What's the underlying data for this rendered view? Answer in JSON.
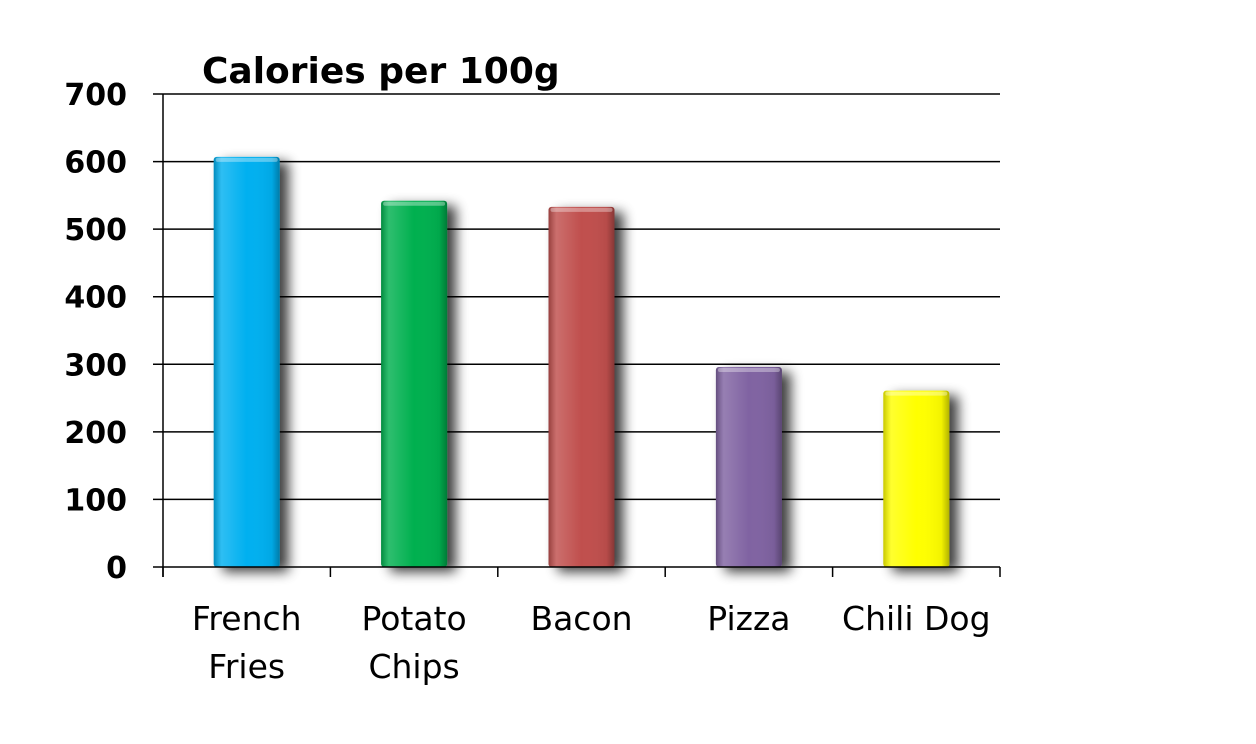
{
  "chart_data": {
    "type": "bar",
    "title": "Calories per 100g",
    "xlabel": "",
    "ylabel": "",
    "ylim": [
      0,
      700
    ],
    "yticks": [
      0,
      100,
      200,
      300,
      400,
      500,
      600,
      700
    ],
    "grid": true,
    "legend": "none",
    "categories": [
      "French Fries",
      "Potato Chips",
      "Bacon",
      "Pizza",
      "Chili Dog"
    ],
    "category_lines": [
      [
        "French",
        "Fries"
      ],
      [
        "Potato",
        "Chips"
      ],
      [
        "Bacon"
      ],
      [
        "Pizza"
      ],
      [
        "Chili Dog"
      ]
    ],
    "values": [
      607,
      542,
      533,
      296,
      261
    ],
    "colors": [
      "#00B0F0",
      "#00B050",
      "#C0504D",
      "#8064A2",
      "#FFFF00"
    ]
  }
}
